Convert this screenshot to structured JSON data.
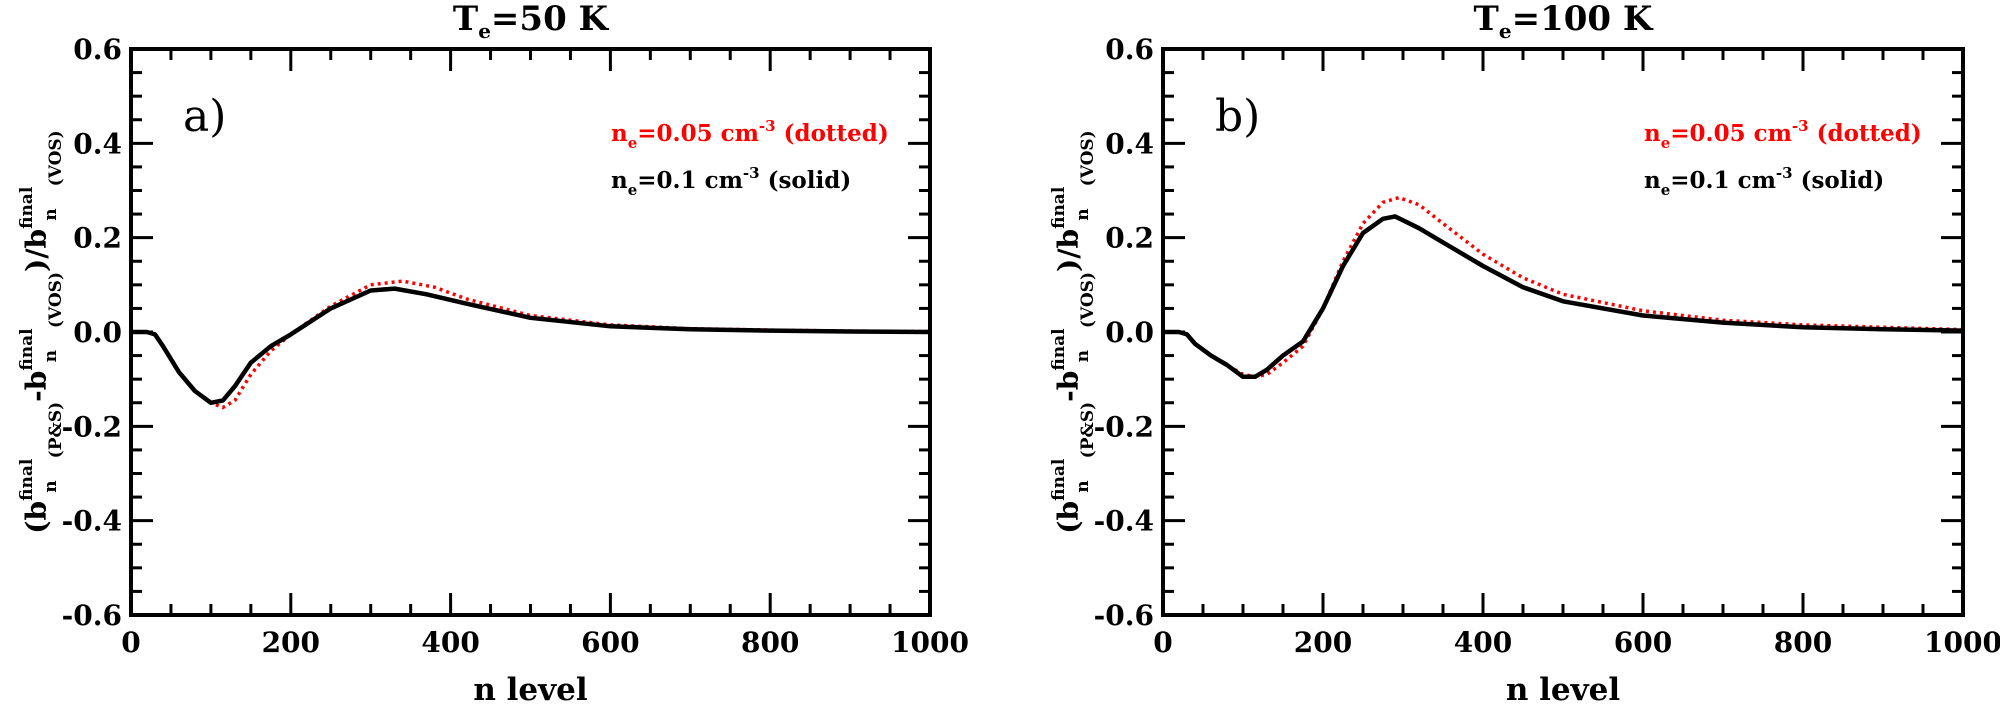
{
  "chart_data": [
    {
      "type": "line",
      "panel": "a)",
      "title": {
        "main": "T",
        "sub": "e",
        "rest": "=50 K"
      },
      "xlabel": "n level",
      "ylabel": {
        "p1": "(b",
        "p1_sub": "n",
        "p1_sup": "final",
        "p2_sub": "(P&S)",
        "p3": "-b",
        "p3_sub": "n",
        "p3_sup": "final",
        "p4_sub": "(VOS)",
        "p5": ")/b",
        "p5_sub": "n",
        "p5_sup": "final",
        "p6_sub": "(VOS)"
      },
      "xlim": [
        0,
        1000
      ],
      "ylim": [
        -0.6,
        0.6
      ],
      "xticks": [
        "0",
        "200",
        "400",
        "600",
        "800",
        "1000"
      ],
      "yticks": [
        "-0.6",
        "-0.4",
        "-0.2",
        "0.0",
        "0.2",
        "0.4",
        "0.6"
      ],
      "legend": [
        {
          "pre": "n",
          "sub": "e",
          "mid": "=0.05 cm",
          "sup": "-3",
          "post": " (dotted)",
          "color": "#ff0000",
          "style": "dotted"
        },
        {
          "pre": "n",
          "sub": "e",
          "mid": "=0.1 cm",
          "sup": "-3",
          "post": " (solid)",
          "color": "#000000",
          "style": "solid"
        }
      ],
      "series": [
        {
          "name": "ne=0.05 (dotted)",
          "color": "#ff0000",
          "style": "dotted",
          "x": [
            0,
            20,
            30,
            40,
            60,
            80,
            100,
            115,
            130,
            150,
            175,
            200,
            250,
            300,
            340,
            380,
            420,
            500,
            600,
            700,
            800,
            900,
            1000
          ],
          "y": [
            0,
            0,
            -0.005,
            -0.03,
            -0.085,
            -0.125,
            -0.15,
            -0.16,
            -0.145,
            -0.09,
            -0.04,
            -0.005,
            0.055,
            0.1,
            0.108,
            0.095,
            0.07,
            0.035,
            0.015,
            0.007,
            0.004,
            0.002,
            0.001
          ]
        },
        {
          "name": "ne=0.1 (solid)",
          "color": "#000000",
          "style": "solid",
          "x": [
            0,
            20,
            30,
            40,
            60,
            80,
            100,
            115,
            130,
            150,
            175,
            200,
            250,
            300,
            330,
            370,
            420,
            500,
            600,
            700,
            800,
            900,
            1000
          ],
          "y": [
            0,
            0,
            -0.005,
            -0.03,
            -0.085,
            -0.125,
            -0.15,
            -0.145,
            -0.115,
            -0.065,
            -0.03,
            -0.005,
            0.05,
            0.088,
            0.092,
            0.08,
            0.06,
            0.03,
            0.012,
            0.006,
            0.003,
            0.001,
            0.0
          ]
        }
      ]
    },
    {
      "type": "line",
      "panel": "b)",
      "title": {
        "main": "T",
        "sub": "e",
        "rest": "=100 K"
      },
      "xlabel": "n level",
      "ylabel": {
        "p1": "(b",
        "p1_sub": "n",
        "p1_sup": "final",
        "p2_sub": "(P&S)",
        "p3": "-b",
        "p3_sub": "n",
        "p3_sup": "final",
        "p4_sub": "(VOS)",
        "p5": ")/b",
        "p5_sub": "n",
        "p5_sup": "final",
        "p6_sub": "(VOS)"
      },
      "xlim": [
        0,
        1000
      ],
      "ylim": [
        -0.6,
        0.6
      ],
      "xticks": [
        "0",
        "200",
        "400",
        "600",
        "800",
        "1000"
      ],
      "yticks": [
        "-0.6",
        "-0.4",
        "-0.2",
        "0.0",
        "0.2",
        "0.4",
        "0.6"
      ],
      "legend": [
        {
          "pre": "n",
          "sub": "e",
          "mid": "=0.05 cm",
          "sup": "-3",
          "post": " (dotted)",
          "color": "#ff0000",
          "style": "dotted"
        },
        {
          "pre": "n",
          "sub": "e",
          "mid": "=0.1 cm",
          "sup": "-3",
          "post": " (solid)",
          "color": "#000000",
          "style": "solid"
        }
      ],
      "series": [
        {
          "name": "ne=0.05 (dotted)",
          "color": "#ff0000",
          "style": "dotted",
          "x": [
            0,
            20,
            30,
            40,
            60,
            80,
            100,
            115,
            130,
            150,
            175,
            200,
            225,
            250,
            275,
            295,
            320,
            350,
            400,
            450,
            500,
            600,
            700,
            800,
            900,
            1000
          ],
          "y": [
            0,
            0,
            -0.005,
            -0.025,
            -0.05,
            -0.07,
            -0.09,
            -0.095,
            -0.09,
            -0.065,
            -0.03,
            0.05,
            0.15,
            0.23,
            0.275,
            0.285,
            0.27,
            0.23,
            0.165,
            0.115,
            0.08,
            0.045,
            0.025,
            0.015,
            0.01,
            0.005
          ]
        },
        {
          "name": "ne=0.1 (solid)",
          "color": "#000000",
          "style": "solid",
          "x": [
            0,
            20,
            30,
            40,
            60,
            80,
            100,
            115,
            130,
            150,
            175,
            200,
            225,
            250,
            275,
            290,
            320,
            350,
            400,
            450,
            500,
            600,
            700,
            800,
            900,
            1000
          ],
          "y": [
            0,
            0,
            -0.005,
            -0.025,
            -0.05,
            -0.07,
            -0.095,
            -0.095,
            -0.08,
            -0.05,
            -0.02,
            0.05,
            0.14,
            0.21,
            0.24,
            0.245,
            0.22,
            0.19,
            0.14,
            0.095,
            0.065,
            0.035,
            0.02,
            0.01,
            0.006,
            0.003
          ]
        }
      ]
    }
  ]
}
